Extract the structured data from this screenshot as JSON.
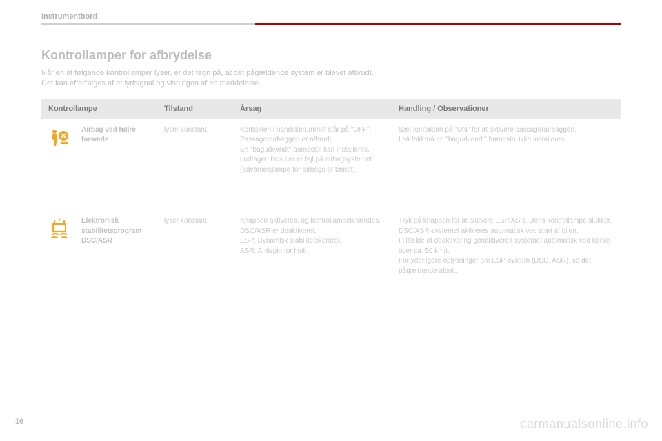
{
  "section_label": "Instrumentbord",
  "title": "Kontrollamper for afbrydelse",
  "intro_line1": "Når en af følgende kontrollamper lyser, er det tegn på, at det pågældende system er blevet afbrudt.",
  "intro_line2": "Det kan efterfølges af et lydsignal og visningen af en meddelelse.",
  "headers": {
    "lamp": "Kontrollampe",
    "state": "Tilstand",
    "cause": "Årsag",
    "action": "Handling / Observationer"
  },
  "rows": [
    {
      "icon": "airbag",
      "name": "Airbag ved højre forsæde",
      "state": "lyser konstant.",
      "cause": "Kontakten i handskerummet står på \"OFF\".\nPassagerairbaggen er afbrudt.\nEn \"bagudvendt\" barnestol kan installeres, undtagen hvis der er fejl på airbagsystemet (advarselslampe for airbags er tændt).",
      "action": "Sæt kontakten på \"ON\" for at aktivere passagerairbaggen.\nI så fald må en \"bagudvendt\" barnestol ikke installeres."
    },
    {
      "icon": "esp",
      "name": "Elektronisk stabilitetsprogram DSC/ASR",
      "state": "lyser konstant.",
      "cause": "Knappen aktiveres, og kontrollampen tændes.\nDSC/ASR er deaktiveret.\nESP: Dynamisk stabilitetskontrol.\nASR: Antispin for hjul.",
      "action": "Tryk på knappen for at aktivere ESP/ASR. Dens kontrollampe slukker.\nDSC/ASR-systemet aktiveres automatisk ved start af bilen.\nI tilfælde af deaktivering genaktiveres systemet automatisk ved kørsel over ca. 50 km/t.\nFor yderligere oplysninger om ESP-system (DSC, ASR), se det pågældende afsnit."
    }
  ],
  "page_number": "16",
  "watermark": "carmanualsonline.info",
  "colors": {
    "icon": "#f5a623",
    "header_bg": "#e8e8e8",
    "rule_grey": "#d0d0d0",
    "rule_red": "#b00000",
    "text_faint": "#c0c0c0"
  }
}
